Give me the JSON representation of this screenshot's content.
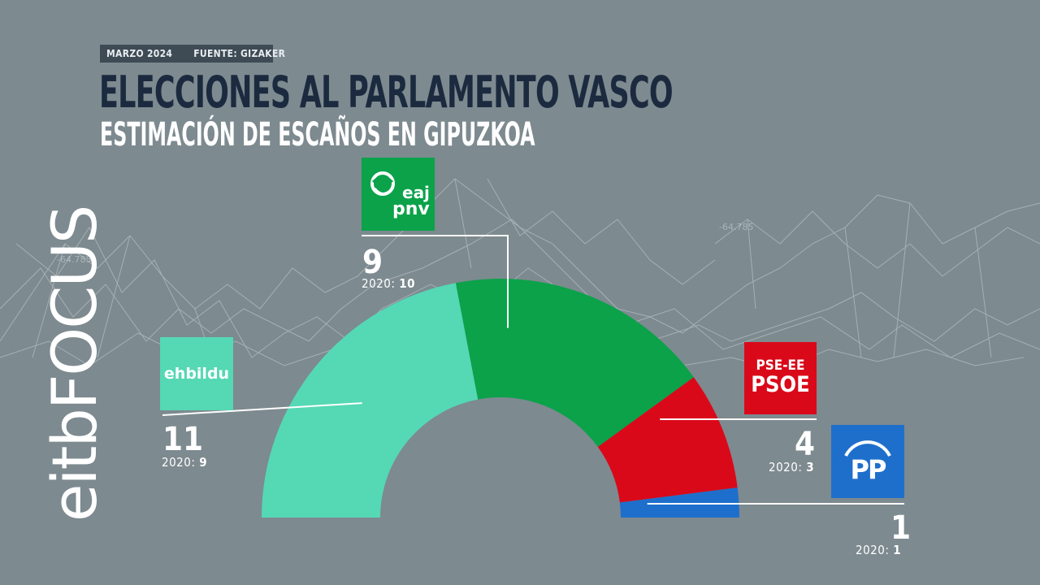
{
  "header": {
    "date": "MARZO 2024",
    "source": "FUENTE: GIZAKER",
    "title": "ELECCIONES AL PARLAMENTO VASCO",
    "subtitle": "ESTIMACIÓN DE ESCAÑOS EN GIPUZKOA"
  },
  "brand": {
    "part1": "eitb",
    "part2": "FOCUS"
  },
  "background_labels": [
    "-64.785",
    "-64.785"
  ],
  "logos": {
    "ehbildu": "ehbildu",
    "pnv_line1": "eaj",
    "pnv_line2": "pnv",
    "psoe_line1": "PSE-EE",
    "psoe_line2": "PSOE",
    "pp": "PP"
  },
  "colors": {
    "background": "#7d8a90",
    "ehbildu": "#55d8b4",
    "pnv": "#0ba24a",
    "psoe": "#d9091a",
    "pp": "#1e6fcc",
    "title": "#1c2a3f"
  },
  "chart_data": {
    "type": "pie",
    "subtype": "semicircle",
    "total": 25,
    "series": [
      {
        "name": "ehbildu",
        "value": 11,
        "prev_label": "2020:",
        "prev": 9,
        "color": "#55d8b4"
      },
      {
        "name": "eaj pnv",
        "value": 9,
        "prev_label": "2020:",
        "prev": 10,
        "color": "#0ba24a"
      },
      {
        "name": "PSE-EE PSOE",
        "value": 4,
        "prev_label": "2020:",
        "prev": 3,
        "color": "#d9091a"
      },
      {
        "name": "PP",
        "value": 1,
        "prev_label": "2020:",
        "prev": 1,
        "color": "#1e6fcc"
      }
    ]
  }
}
